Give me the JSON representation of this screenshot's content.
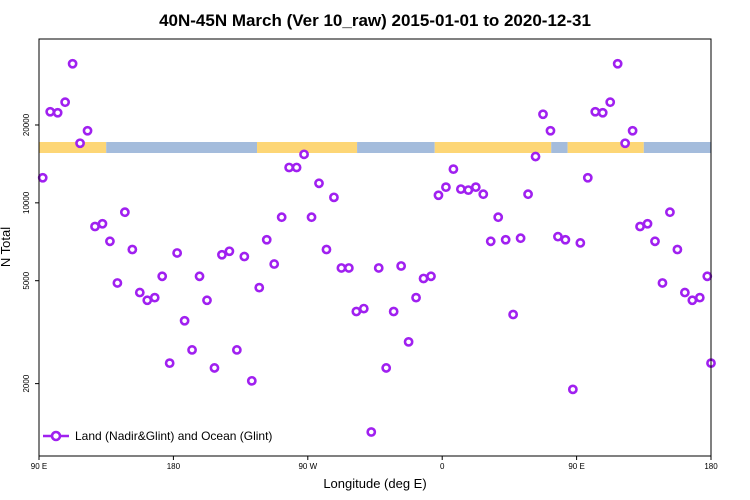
{
  "chart_data": {
    "type": "scatter",
    "title": "40N-45N March (Ver 10_raw)   2015-01-01 to 2020-12-31",
    "xlabel": "Longitude (deg E)",
    "ylabel": "N Total",
    "yscale": "log",
    "xlim": [
      90,
      540
    ],
    "ylim": [
      1050,
      43000
    ],
    "x_ticks": [
      {
        "value": 90,
        "label": "90 E"
      },
      {
        "value": 180,
        "label": "180"
      },
      {
        "value": 270,
        "label": "90 W"
      },
      {
        "value": 360,
        "label": "0"
      },
      {
        "value": 450,
        "label": "90 E"
      },
      {
        "value": 540,
        "label": "180"
      }
    ],
    "y_ticks": [
      {
        "value": 2000,
        "label": "2000"
      },
      {
        "value": 5000,
        "label": "5000"
      },
      {
        "value": 10000,
        "label": "10000"
      },
      {
        "value": 20000,
        "label": "20000"
      }
    ],
    "land_ocean_strip": {
      "description_colors": {
        "land": "#fdd676",
        "ocean": "#a4bcdc"
      },
      "segments": [
        {
          "type": "land",
          "from": 90,
          "to": 135
        },
        {
          "type": "ocean",
          "from": 135,
          "to": 236
        },
        {
          "type": "land",
          "from": 236,
          "to": 303
        },
        {
          "type": "ocean",
          "from": 303,
          "to": 355
        },
        {
          "type": "land",
          "from": 355,
          "to": 433
        },
        {
          "type": "ocean",
          "from": 433,
          "to": 444
        },
        {
          "type": "land",
          "from": 444,
          "to": 495
        },
        {
          "type": "ocean",
          "from": 495,
          "to": 540
        }
      ]
    },
    "series": [
      {
        "name": "Land (Nadir&Glint) and Ocean (Glint)",
        "color": "#a020f0",
        "points": [
          [
            92.5,
            12500
          ],
          [
            97.5,
            22500
          ],
          [
            102.5,
            22300
          ],
          [
            107.5,
            24500
          ],
          [
            112.5,
            34500
          ],
          [
            117.5,
            17000
          ],
          [
            122.5,
            19000
          ],
          [
            127.5,
            8100
          ],
          [
            132.5,
            8300
          ],
          [
            137.5,
            7100
          ],
          [
            142.5,
            4900
          ],
          [
            147.5,
            9200
          ],
          [
            152.5,
            6600
          ],
          [
            157.5,
            4500
          ],
          [
            162.5,
            4200
          ],
          [
            167.5,
            4300
          ],
          [
            172.5,
            5200
          ],
          [
            177.5,
            2400
          ],
          [
            182.5,
            6400
          ],
          [
            187.5,
            3500
          ],
          [
            192.5,
            2700
          ],
          [
            197.5,
            5200
          ],
          [
            202.5,
            4200
          ],
          [
            207.5,
            2300
          ],
          [
            212.5,
            6300
          ],
          [
            217.5,
            6500
          ],
          [
            222.5,
            2700
          ],
          [
            227.5,
            6200
          ],
          [
            232.5,
            2050
          ],
          [
            237.5,
            4700
          ],
          [
            242.5,
            7200
          ],
          [
            247.5,
            5800
          ],
          [
            252.5,
            8800
          ],
          [
            257.5,
            13700
          ],
          [
            262.5,
            13700
          ],
          [
            267.5,
            15400
          ],
          [
            272.5,
            8800
          ],
          [
            277.5,
            11900
          ],
          [
            282.5,
            6600
          ],
          [
            287.5,
            10500
          ],
          [
            292.5,
            5600
          ],
          [
            297.5,
            5600
          ],
          [
            302.5,
            3800
          ],
          [
            307.5,
            3900
          ],
          [
            312.5,
            1300
          ],
          [
            317.5,
            5600
          ],
          [
            322.5,
            2300
          ],
          [
            327.5,
            3800
          ],
          [
            332.5,
            5700
          ],
          [
            337.5,
            2900
          ],
          [
            342.5,
            4300
          ],
          [
            347.5,
            5100
          ],
          [
            352.5,
            5200
          ],
          [
            357.5,
            10700
          ],
          [
            362.5,
            11500
          ],
          [
            367.5,
            13500
          ],
          [
            372.5,
            11300
          ],
          [
            377.5,
            11200
          ],
          [
            382.5,
            11500
          ],
          [
            387.5,
            10800
          ],
          [
            392.5,
            7100
          ],
          [
            397.5,
            8800
          ],
          [
            402.5,
            7200
          ],
          [
            407.5,
            3700
          ],
          [
            412.5,
            7300
          ],
          [
            417.5,
            10800
          ],
          [
            422.5,
            15100
          ],
          [
            427.5,
            22000
          ],
          [
            432.5,
            19000
          ],
          [
            437.5,
            7400
          ],
          [
            442.5,
            7200
          ],
          [
            447.5,
            1900
          ],
          [
            452.5,
            7000
          ],
          [
            457.5,
            12500
          ],
          [
            462.5,
            22500
          ],
          [
            467.5,
            22300
          ],
          [
            472.5,
            24500
          ],
          [
            477.5,
            34500
          ],
          [
            482.5,
            17000
          ],
          [
            487.5,
            19000
          ],
          [
            492.5,
            8100
          ],
          [
            497.5,
            8300
          ],
          [
            502.5,
            7100
          ],
          [
            507.5,
            4900
          ],
          [
            512.5,
            9200
          ],
          [
            517.5,
            6600
          ],
          [
            522.5,
            4500
          ],
          [
            527.5,
            4200
          ],
          [
            532.5,
            4300
          ],
          [
            537.5,
            5200
          ],
          [
            540,
            2400
          ]
        ]
      }
    ]
  }
}
